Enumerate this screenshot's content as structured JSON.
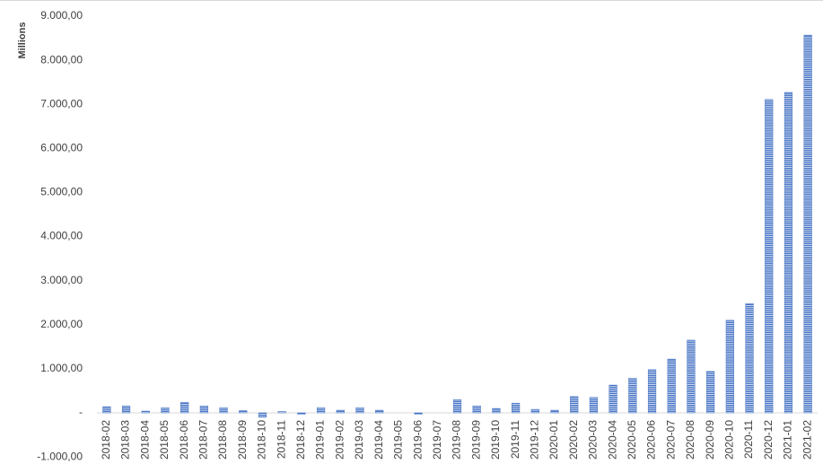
{
  "chart_data": {
    "type": "bar",
    "y_axis_label": "Millions",
    "categories": [
      "2018-02",
      "2018-03",
      "2018-04",
      "2018-05",
      "2018-06",
      "2018-07",
      "2018-08",
      "2018-09",
      "2018-10",
      "2018-11",
      "2018-12",
      "2019-01",
      "2019-02",
      "2019-03",
      "2019-04",
      "2019-05",
      "2019-06",
      "2019-07",
      "2019-08",
      "2019-09",
      "2019-10",
      "2019-11",
      "2019-12",
      "2020-01",
      "2020-02",
      "2020-03",
      "2020-04",
      "2020-05",
      "2020-06",
      "2020-07",
      "2020-08",
      "2020-09",
      "2020-10",
      "2020-11",
      "2020-12",
      "2021-01",
      "2021-02"
    ],
    "values": [
      140,
      160,
      40,
      120,
      240,
      160,
      120,
      50,
      -100,
      30,
      -30,
      120,
      60,
      120,
      60,
      0,
      -30,
      0,
      300,
      160,
      100,
      220,
      80,
      60,
      370,
      350,
      630,
      790,
      980,
      1220,
      1650,
      940,
      2100,
      2480,
      7110,
      7270,
      8570
    ],
    "color": "#4472c4",
    "ylim": [
      -1000,
      9000
    ],
    "yticks": [
      {
        "value": -1000,
        "label": "-1.000,00"
      },
      {
        "value": 0,
        "label": "-"
      },
      {
        "value": 1000,
        "label": "1.000,00"
      },
      {
        "value": 2000,
        "label": "2.000,00"
      },
      {
        "value": 3000,
        "label": "3.000,00"
      },
      {
        "value": 4000,
        "label": "4.000,00"
      },
      {
        "value": 5000,
        "label": "5.000,00"
      },
      {
        "value": 6000,
        "label": "6.000,00"
      },
      {
        "value": 7000,
        "label": "7.000,00"
      },
      {
        "value": 8000,
        "label": "8.000,00"
      },
      {
        "value": 9000,
        "label": "9.000,00"
      }
    ],
    "grid": false
  }
}
